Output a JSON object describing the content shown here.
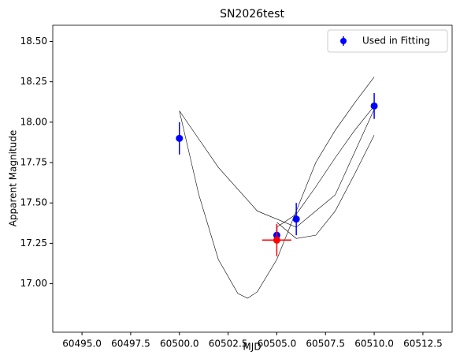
{
  "chart_data": {
    "type": "errorbar",
    "title": "SN2026test",
    "x_label": "MJD",
    "y_label": "Apparent Magnitude",
    "xlim": [
      60493.5,
      60514
    ],
    "ylim": [
      16.7,
      18.6
    ],
    "xticks": [
      {
        "value": 60495,
        "label": "60495.0"
      },
      60497.5,
      {
        "value": 60500,
        "label": "60500.0"
      },
      60502.5,
      {
        "value": 60505,
        "label": "60505.0"
      },
      60507.5,
      {
        "value": 60510,
        "label": "60510.0"
      },
      60512.5
    ],
    "yticks": [
      {
        "value": 17,
        "label": "17.00"
      },
      17.25,
      {
        "value": 17.5,
        "label": "17.50"
      },
      17.75,
      {
        "value": 18,
        "label": "18.00"
      },
      18.25,
      {
        "value": 18.5,
        "label": "18.50"
      }
    ],
    "legend": "upper right",
    "series": [
      {
        "style": "line",
        "color": "#000000",
        "x": [
          60500,
          60501,
          60502,
          60503,
          60503.5,
          60504,
          60505,
          60506,
          60507,
          60508,
          60509,
          60510
        ],
        "values": [
          18.07,
          17.55,
          17.15,
          16.94,
          16.91,
          16.95,
          17.15,
          17.45,
          17.75,
          17.95,
          18.12,
          18.28
        ]
      },
      {
        "style": "line",
        "color": "#000000",
        "x": [
          60500,
          60502,
          60504,
          60506,
          60508,
          60510
        ],
        "values": [
          18.07,
          17.72,
          17.45,
          17.35,
          17.55,
          18.08
        ]
      },
      {
        "style": "line",
        "color": "#000000",
        "x": [
          60505,
          60506,
          60507,
          60508,
          60509,
          60510
        ],
        "values": [
          17.38,
          17.28,
          17.3,
          17.45,
          17.68,
          17.92
        ]
      },
      {
        "style": "line",
        "color": "#000000",
        "x": [
          60505,
          60506,
          60507,
          60508,
          60509,
          60510
        ],
        "values": [
          17.35,
          17.43,
          17.6,
          17.78,
          17.95,
          18.1
        ]
      },
      {
        "style": "errorbar",
        "name": "Used in Fitting",
        "color": "#0000ff",
        "x": [
          60500,
          60505,
          60506,
          60510
        ],
        "values": [
          17.9,
          17.3,
          17.4,
          18.1
        ],
        "yerr": [
          0.1,
          0.05,
          0.1,
          0.08
        ]
      },
      {
        "style": "errorbar",
        "color": "#ff0000",
        "x": [
          60505
        ],
        "values": [
          17.27
        ],
        "yerr": [
          0.1
        ],
        "xerr": [
          0.75
        ]
      }
    ]
  }
}
